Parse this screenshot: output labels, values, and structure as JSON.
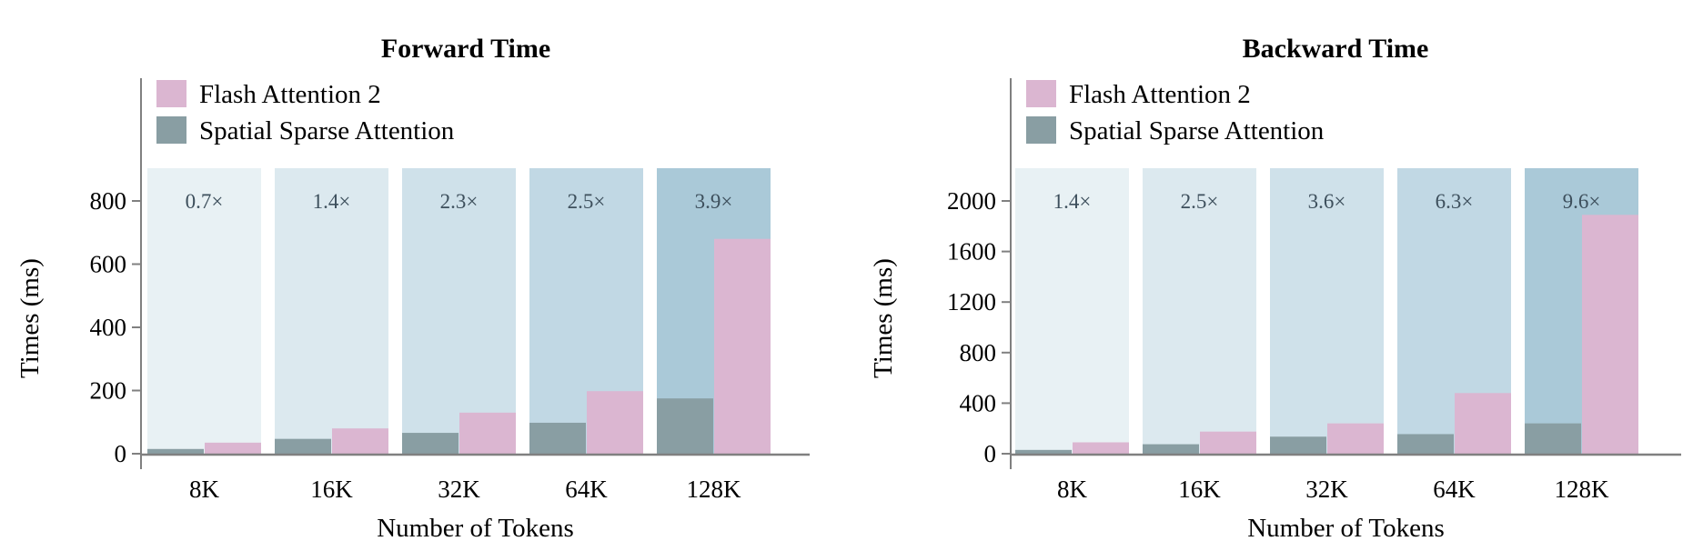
{
  "colors": {
    "flash": "#dbb6d1",
    "spatial": "#899ea3",
    "axis": "#808080",
    "bands": [
      "#e8f1f4",
      "#dce9ef",
      "#cfe1ea",
      "#c1d8e4",
      "#aac9d8"
    ]
  },
  "chart_data": [
    {
      "type": "bar",
      "title": "Forward Time",
      "xlabel": "Number of Tokens",
      "ylabel": "Times (ms)",
      "categories": [
        "8K",
        "16K",
        "32K",
        "64K",
        "128K"
      ],
      "series": [
        {
          "name": "Spatial Sparse Attention",
          "values": [
            15,
            47,
            66,
            98,
            175
          ]
        },
        {
          "name": "Flash Attention 2",
          "values": [
            35,
            80,
            130,
            198,
            680
          ]
        }
      ],
      "speedups": [
        "0.7×",
        "1.4×",
        "2.3×",
        "2.5×",
        "3.9×"
      ],
      "ylim": [
        0,
        900
      ],
      "yticks": [
        0,
        200,
        400,
        600,
        800
      ],
      "legend": "top-left"
    },
    {
      "type": "bar",
      "title": "Backward Time",
      "xlabel": "Number of Tokens",
      "ylabel": "Times (ms)",
      "categories": [
        "8K",
        "16K",
        "32K",
        "64K",
        "128K"
      ],
      "series": [
        {
          "name": "Spatial Sparse Attention",
          "values": [
            30,
            75,
            135,
            155,
            240
          ]
        },
        {
          "name": "Flash Attention 2",
          "values": [
            90,
            175,
            240,
            480,
            1890
          ]
        }
      ],
      "speedups": [
        "1.4×",
        "2.5×",
        "3.6×",
        "6.3×",
        "9.6×"
      ],
      "ylim": [
        -40,
        2250
      ],
      "yticks": [
        0,
        400,
        800,
        1200,
        1600,
        2000
      ],
      "legend": "top-left"
    }
  ]
}
